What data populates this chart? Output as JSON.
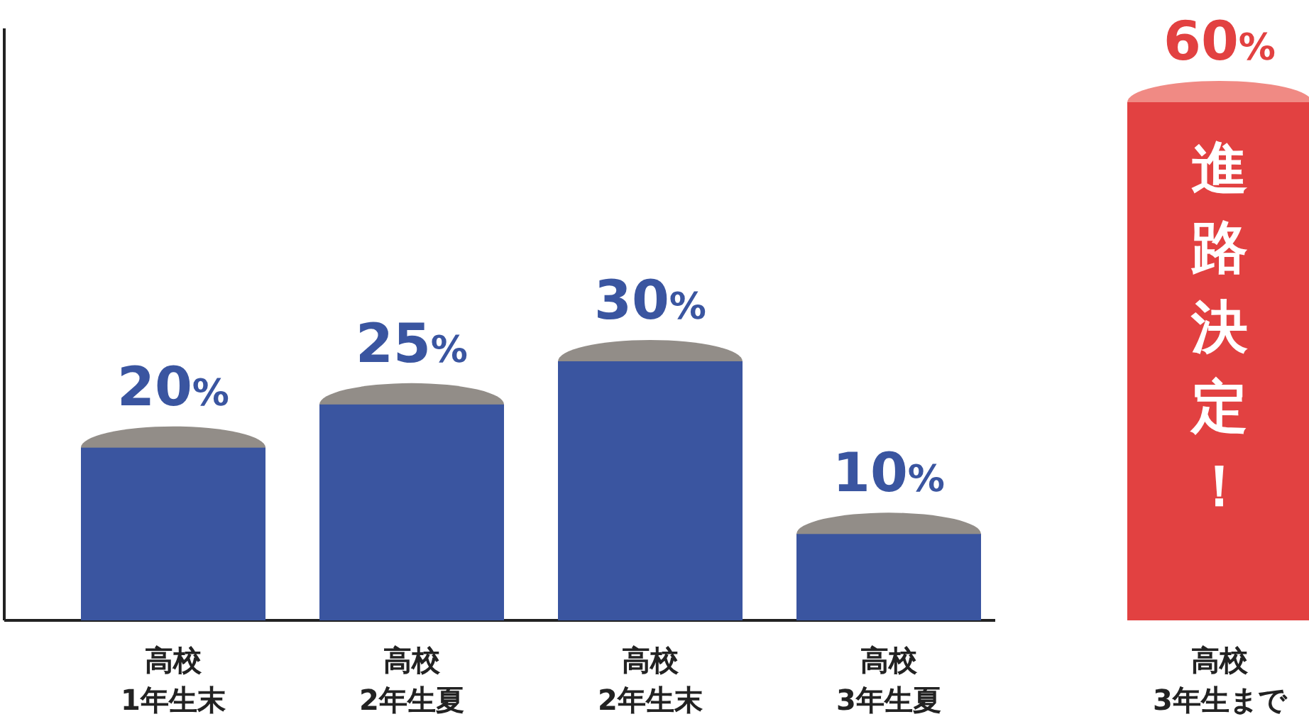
{
  "chart_data": {
    "type": "bar",
    "categories": [
      "高校\n1年生末",
      "高校\n2年生夏",
      "高校\n2年生末",
      "高校\n3年生夏",
      "高校\n3年生まで"
    ],
    "values": [
      20,
      25,
      30,
      10,
      60
    ],
    "colors": [
      "#3a55a0",
      "#3a55a0",
      "#3a55a0",
      "#3a55a0",
      "#e24141"
    ],
    "value_labels": [
      "20%",
      "25%",
      "30%",
      "10%",
      "60%"
    ],
    "annotations": [
      "進路決定！"
    ],
    "tick_labels": "x"
  }
}
